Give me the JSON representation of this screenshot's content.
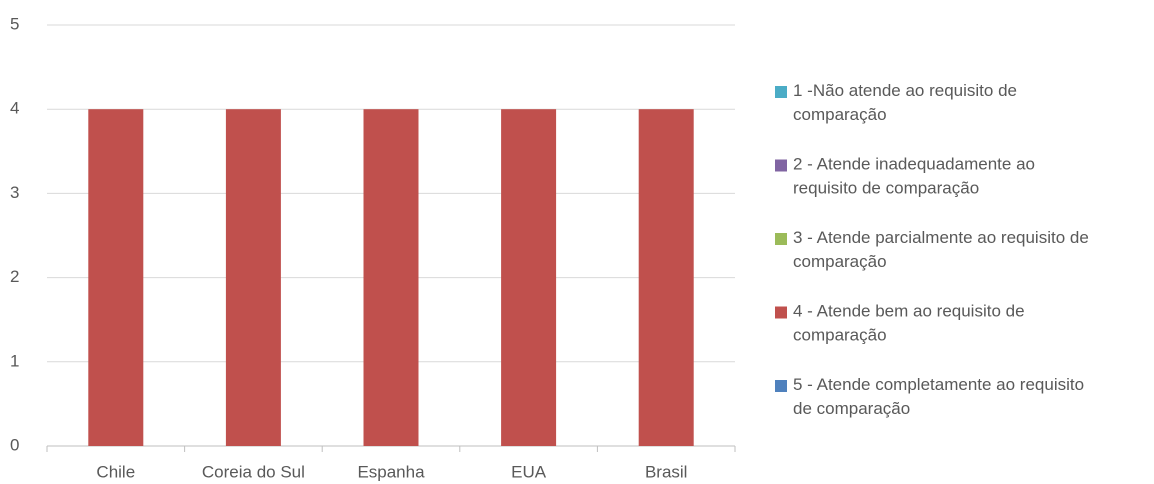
{
  "chart_data": {
    "type": "bar",
    "stacked": true,
    "categories": [
      "Chile",
      "Coreia do Sul",
      "Espanha",
      "EUA",
      "Brasil"
    ],
    "series": [
      {
        "name": "1 -Não atende ao requisito de comparação",
        "color": "#4bacc6",
        "values": [
          0,
          0,
          0,
          0,
          0
        ]
      },
      {
        "name": "2 - Atende inadequadamente ao requisito de comparação",
        "color": "#8064a2",
        "values": [
          0,
          0,
          0,
          0,
          0
        ]
      },
      {
        "name": "3 - Atende parcialmente ao requisito de comparação",
        "color": "#9bbb59",
        "values": [
          0,
          0,
          0,
          0,
          0
        ]
      },
      {
        "name": "4 - Atende bem ao requisito de comparação",
        "color": "#c0504d",
        "values": [
          4,
          4,
          4,
          4,
          4
        ]
      },
      {
        "name": "5 - Atende completamente ao requisito de comparação",
        "color": "#4f81bd",
        "values": [
          0,
          0,
          0,
          0,
          0
        ]
      }
    ],
    "ylim": [
      0,
      5
    ],
    "yticks": [
      0,
      1,
      2,
      3,
      4,
      5
    ],
    "grid": true,
    "legend": "right"
  }
}
